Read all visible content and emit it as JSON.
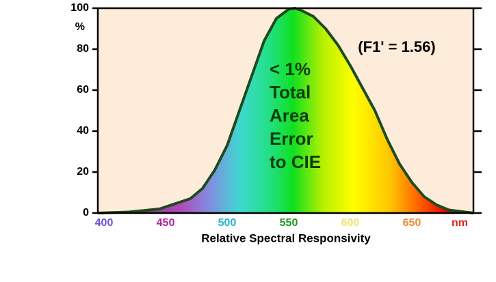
{
  "chart_data": {
    "type": "area",
    "x": [
      395,
      420,
      445,
      470,
      480,
      490,
      500,
      510,
      520,
      530,
      540,
      550,
      555,
      560,
      570,
      580,
      590,
      600,
      610,
      620,
      630,
      640,
      650,
      660,
      670,
      680,
      700
    ],
    "values": [
      0,
      0.5,
      2,
      7,
      12,
      21,
      33,
      50,
      67,
      84,
      95,
      99.5,
      100,
      99,
      96,
      90,
      82,
      72,
      61,
      50,
      36,
      24,
      15,
      8,
      4,
      1.5,
      0
    ],
    "xlim": [
      395,
      700
    ],
    "ylim": [
      0,
      100
    ],
    "xticks": [
      400,
      450,
      500,
      550,
      600,
      650
    ],
    "xtick_colors": [
      "#6a4fd8",
      "#b0229c",
      "#1fb5c8",
      "#1a9a1a",
      "#f2e36a",
      "#f08a2a"
    ],
    "x_unit": "nm",
    "x_unit_color": "#e0201a",
    "yticks": [
      0,
      20,
      40,
      60,
      80,
      100
    ],
    "y_unit": "%",
    "xlabel": "Relative Spectral Responsivity",
    "note": "(F1' = 1.56)",
    "center_note": [
      "< 1%",
      "Total",
      "Area",
      "Error",
      "to CIE"
    ],
    "line_color": "#1f4a1f"
  }
}
